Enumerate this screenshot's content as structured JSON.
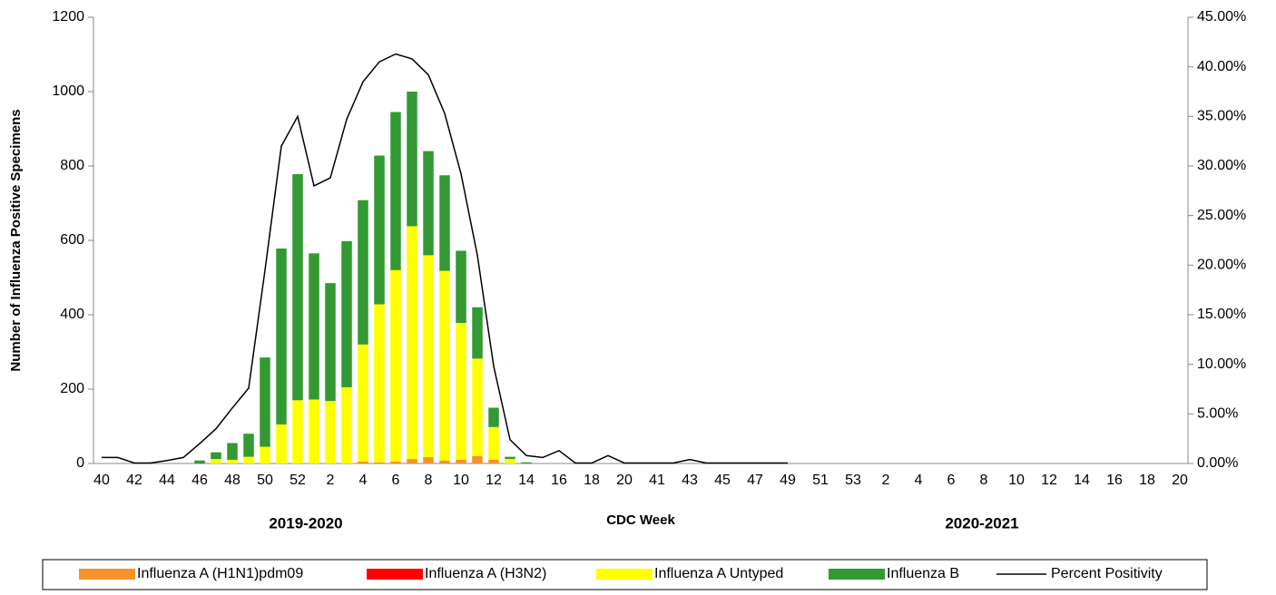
{
  "chart_data": {
    "type": "bar",
    "stacked": true,
    "y_label": "Number of Influenza Positive Specimens",
    "x_label": "CDC Week",
    "annotations": [
      "2019-2020",
      "2020-2021"
    ],
    "categories": [
      "40",
      null,
      "42",
      null,
      "44",
      null,
      "46",
      null,
      "48",
      null,
      "50",
      null,
      "52",
      null,
      "2",
      null,
      "4",
      null,
      "6",
      null,
      "8",
      null,
      "10",
      null,
      "12",
      null,
      "14",
      null,
      "16",
      null,
      "18",
      null,
      "20",
      null,
      "41",
      null,
      "43",
      null,
      "45",
      null,
      "47",
      null,
      "49",
      null,
      "51",
      null,
      "53",
      null,
      "2",
      null,
      "4",
      null,
      "6",
      null,
      "8",
      null,
      "10",
      null,
      "12",
      null,
      "14",
      null,
      "16",
      null,
      "18",
      null,
      "20"
    ],
    "series": [
      {
        "name": "Influenza A (H1N1)pdm09",
        "color": "#f7922a",
        "values": [
          0,
          0,
          0,
          0,
          0,
          0,
          0,
          0,
          0,
          0,
          0,
          0,
          0,
          0,
          0,
          0,
          5,
          3,
          5,
          12,
          17,
          8,
          10,
          20,
          10,
          0,
          0,
          0,
          0,
          0,
          0,
          0,
          0,
          null,
          null,
          null,
          null,
          null,
          null,
          null,
          null,
          null,
          null,
          null,
          null,
          null,
          null,
          null,
          null,
          null,
          null,
          null,
          null,
          null,
          null,
          null,
          null,
          null,
          null,
          null,
          null,
          null,
          null,
          null,
          null,
          null,
          null
        ]
      },
      {
        "name": "Influenza A (H3N2)",
        "color": "#ff0000",
        "values": [
          0,
          0,
          0,
          0,
          0,
          0,
          0,
          0,
          0,
          0,
          0,
          0,
          0,
          0,
          0,
          0,
          0,
          0,
          0,
          0,
          0,
          0,
          0,
          0,
          0,
          0,
          0,
          0,
          0,
          0,
          0,
          0,
          0,
          null,
          null,
          null,
          null,
          null,
          null,
          null,
          null,
          null,
          null,
          null,
          null,
          null,
          null,
          null,
          null,
          null,
          null,
          null,
          null,
          null,
          null,
          null,
          null,
          null,
          null,
          null,
          null,
          null,
          null,
          null,
          null,
          null,
          null
        ]
      },
      {
        "name": "Influenza A Untyped",
        "color": "#ffff00",
        "values": [
          0,
          0,
          0,
          0,
          0,
          0,
          0,
          12,
          10,
          18,
          45,
          105,
          170,
          172,
          168,
          205,
          315,
          425,
          515,
          626,
          543,
          510,
          368,
          262,
          88,
          12,
          0,
          0,
          0,
          0,
          0,
          0,
          0,
          null,
          null,
          null,
          null,
          null,
          null,
          null,
          null,
          null,
          null,
          null,
          null,
          null,
          null,
          null,
          null,
          null,
          null,
          null,
          null,
          null,
          null,
          null,
          null,
          null,
          null,
          null,
          null,
          null,
          null,
          null,
          null,
          null,
          null
        ]
      },
      {
        "name": "Influenza B",
        "color": "#339933",
        "values": [
          0,
          0,
          0,
          0,
          0,
          0,
          8,
          18,
          45,
          62,
          240,
          473,
          608,
          393,
          317,
          393,
          388,
          400,
          425,
          362,
          280,
          257,
          194,
          138,
          52,
          6,
          3,
          0,
          0,
          0,
          0,
          0,
          0,
          null,
          null,
          null,
          null,
          null,
          null,
          null,
          null,
          null,
          null,
          null,
          null,
          null,
          null,
          null,
          null,
          null,
          null,
          null,
          null,
          null,
          null,
          null,
          null,
          null,
          null,
          null,
          null,
          null,
          null,
          null,
          null,
          null,
          null
        ]
      },
      {
        "name": "Percent Positivity",
        "color": "#000000",
        "type": "line",
        "axis": "y2",
        "values": [
          0.6,
          0.6,
          0.05,
          0.05,
          0.3,
          0.6,
          2.0,
          3.5,
          5.6,
          7.6,
          19.5,
          32,
          35,
          28,
          28.8,
          34.7,
          38.5,
          40.5,
          41.3,
          40.8,
          39.2,
          35.3,
          29.2,
          21,
          9.8,
          2.4,
          0.8,
          0.6,
          1.3,
          0.05,
          0.05,
          0.8,
          0.05,
          0.05,
          0.05,
          0.05,
          0.4,
          0.05,
          0.05,
          0.05,
          0.05,
          0.05,
          0.05,
          null,
          null,
          null,
          null,
          null,
          null,
          null,
          null,
          null,
          null,
          null,
          null,
          null,
          null,
          null,
          null,
          null,
          null,
          null,
          null,
          null,
          null,
          null,
          null
        ]
      }
    ],
    "ylim": [
      0,
      1200
    ],
    "yticks": [
      0,
      200,
      400,
      600,
      800,
      1000,
      1200
    ],
    "y2lim": [
      0,
      45
    ],
    "y2ticks": [
      {
        "value": 0,
        "label": "0.00%"
      },
      {
        "value": 5,
        "label": "5.00%"
      },
      {
        "value": 10,
        "label": "10.00%"
      },
      {
        "value": 15,
        "label": "15.00%"
      },
      {
        "value": 20,
        "label": "20.00%"
      },
      {
        "value": 25,
        "label": "25.00%"
      },
      {
        "value": 30,
        "label": "30.00%"
      },
      {
        "value": 35,
        "label": "35.00%"
      },
      {
        "value": 40,
        "label": "40.00%"
      },
      {
        "value": 45,
        "label": "45.00%"
      }
    ],
    "grid": false,
    "legend": "bottom"
  }
}
